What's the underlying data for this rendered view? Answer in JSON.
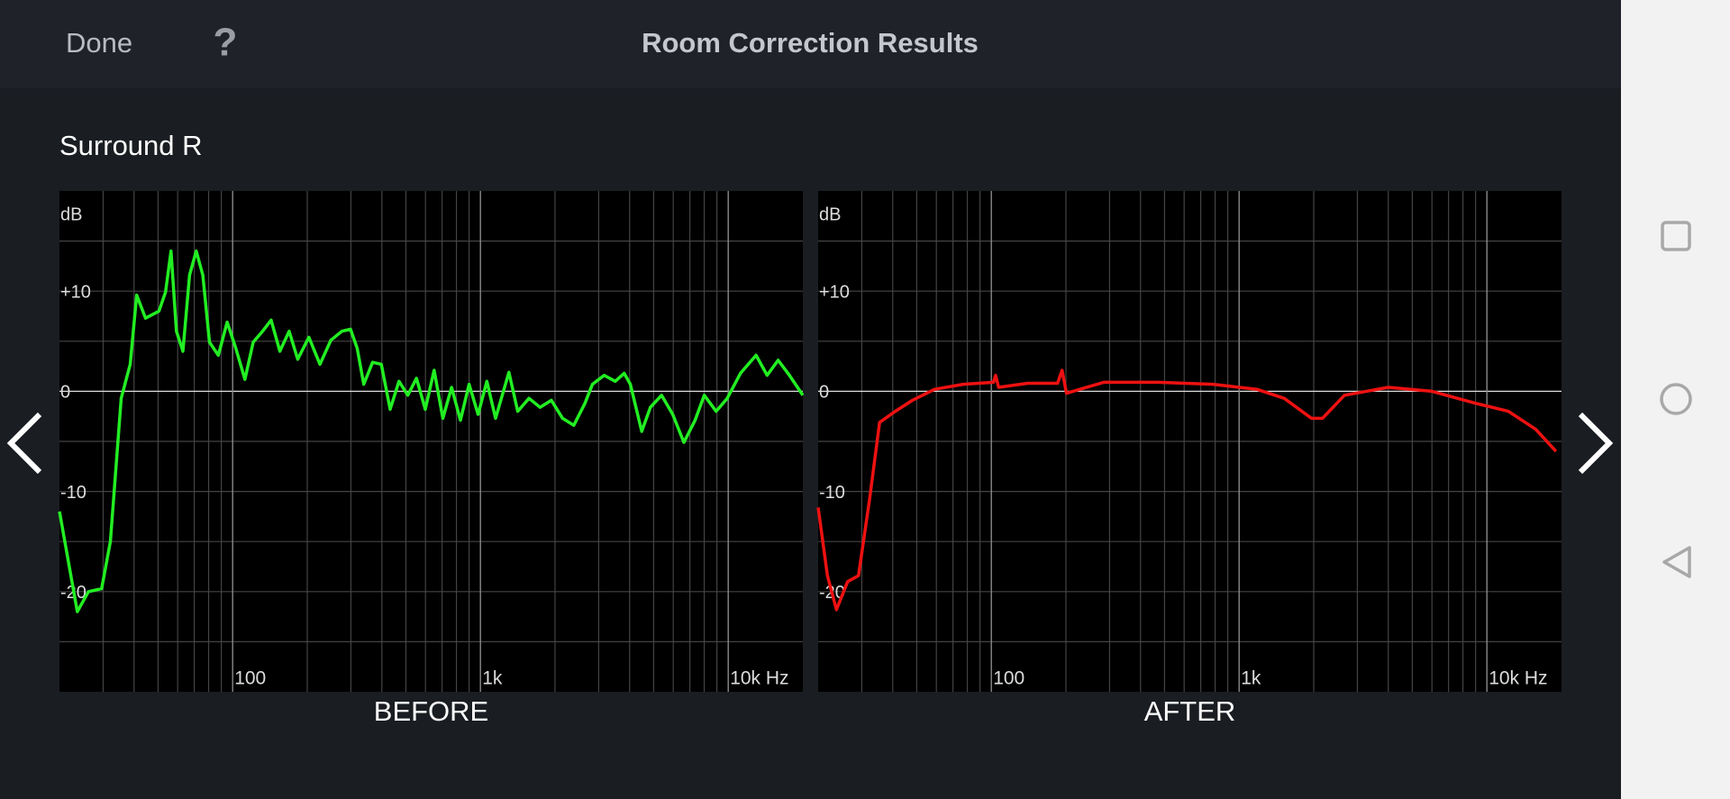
{
  "header": {
    "done": "Done",
    "help": "?",
    "title": "Room Correction Results"
  },
  "section": "Surround R",
  "chart_data": [
    {
      "type": "line",
      "title": "BEFORE",
      "ylabel": "dB",
      "xscale": "log",
      "grid": true,
      "color": "#22ee22",
      "xlim": [
        20,
        20000
      ],
      "ylim": [
        -30,
        20
      ],
      "xticks": [
        100,
        {
          "value": 1000,
          "label": "1k"
        },
        {
          "value": 10000,
          "label": "10k Hz"
        }
      ],
      "yticks": [
        {
          "value": 10,
          "label": "+10"
        },
        0,
        -10,
        -20
      ],
      "minor_xticks": [
        30,
        40,
        50,
        60,
        70,
        80,
        90,
        200,
        300,
        400,
        500,
        600,
        700,
        800,
        900,
        2000,
        3000,
        4000,
        5000,
        6000,
        7000,
        8000,
        9000
      ],
      "minor_yticks": [
        15,
        5,
        -5,
        -15,
        -25
      ],
      "x": [
        20,
        23.6,
        26.2,
        29.6,
        32.1,
        35.5,
        38.6,
        41,
        44.5,
        50.4,
        53.6,
        56.4,
        59.3,
        63,
        67,
        71.3,
        75.8,
        80.6,
        87.5,
        95,
        103,
        112,
        121,
        132,
        143,
        155,
        169,
        183,
        203,
        225,
        249,
        276,
        299,
        318,
        338,
        367,
        398,
        432,
        469,
        509,
        552,
        599,
        650,
        705,
        765,
        830,
        900,
        978,
        1061,
        1151,
        1303,
        1414,
        1570,
        1741,
        1933,
        2145,
        2380,
        2641,
        2830,
        3156,
        3500,
        3800,
        4027,
        4475,
        4850,
        5380,
        5970,
        6620,
        7350,
        8000,
        8940,
        9910,
        11200,
        12950,
        14360,
        15900,
        17660,
        20000
      ],
      "values": [
        -12,
        -22,
        -20,
        -19.7,
        -15,
        -0.7,
        2.7,
        9.6,
        7.3,
        8,
        9.9,
        14,
        6,
        4,
        11.6,
        14,
        11.6,
        4.9,
        3.6,
        6.9,
        4.3,
        1.2,
        4.9,
        6,
        7.1,
        4,
        6,
        3.2,
        5.4,
        2.7,
        5.1,
        6,
        6.2,
        4.3,
        0.7,
        2.9,
        2.7,
        -1.8,
        1,
        -0.4,
        1.3,
        -1.8,
        2.1,
        -2.7,
        0.4,
        -2.9,
        0.7,
        -2.3,
        1,
        -2.7,
        1.9,
        -2,
        -0.7,
        -1.6,
        -0.9,
        -2.7,
        -3.4,
        -1.2,
        0.7,
        1.6,
        1,
        1.8,
        0.7,
        -4,
        -1.6,
        -0.4,
        -2.3,
        -5.1,
        -2.9,
        -0.4,
        -2,
        -0.7,
        1.8,
        3.6,
        1.6,
        3.1,
        1.6,
        -0.4
      ]
    },
    {
      "type": "line",
      "title": "AFTER",
      "ylabel": "dB",
      "xscale": "log",
      "grid": true,
      "color": "#ee1111",
      "xlim": [
        20,
        20000
      ],
      "ylim": [
        -30,
        20
      ],
      "xticks": [
        100,
        {
          "value": 1000,
          "label": "1k"
        },
        {
          "value": 10000,
          "label": "10k Hz"
        }
      ],
      "yticks": [
        {
          "value": 10,
          "label": "+10"
        },
        0,
        -10,
        -20
      ],
      "minor_xticks": [
        30,
        40,
        50,
        60,
        70,
        80,
        90,
        200,
        300,
        400,
        500,
        600,
        700,
        800,
        900,
        2000,
        3000,
        4000,
        5000,
        6000,
        7000,
        8000,
        9000
      ],
      "minor_yticks": [
        15,
        5,
        -5,
        -15,
        -25
      ],
      "x": [
        20,
        21.8,
        23.7,
        26.3,
        29.1,
        32.3,
        35.4,
        41,
        48,
        59,
        77,
        102,
        104,
        107,
        140,
        185,
        193,
        201,
        284,
        472,
        785,
        1180,
        1520,
        1960,
        2170,
        2660,
        4000,
        6000,
        9000,
        12200,
        15750,
        19000
      ],
      "values": [
        -11.6,
        -18.4,
        -21.8,
        -19,
        -18.4,
        -10.7,
        -3.1,
        -2,
        -0.9,
        0.2,
        0.7,
        0.9,
        1.6,
        0.4,
        0.8,
        0.8,
        2.1,
        -0.2,
        0.9,
        0.9,
        0.7,
        0.2,
        -0.7,
        -2.7,
        -2.7,
        -0.4,
        0.4,
        0,
        -1.2,
        -2,
        -3.8,
        -6
      ]
    }
  ]
}
